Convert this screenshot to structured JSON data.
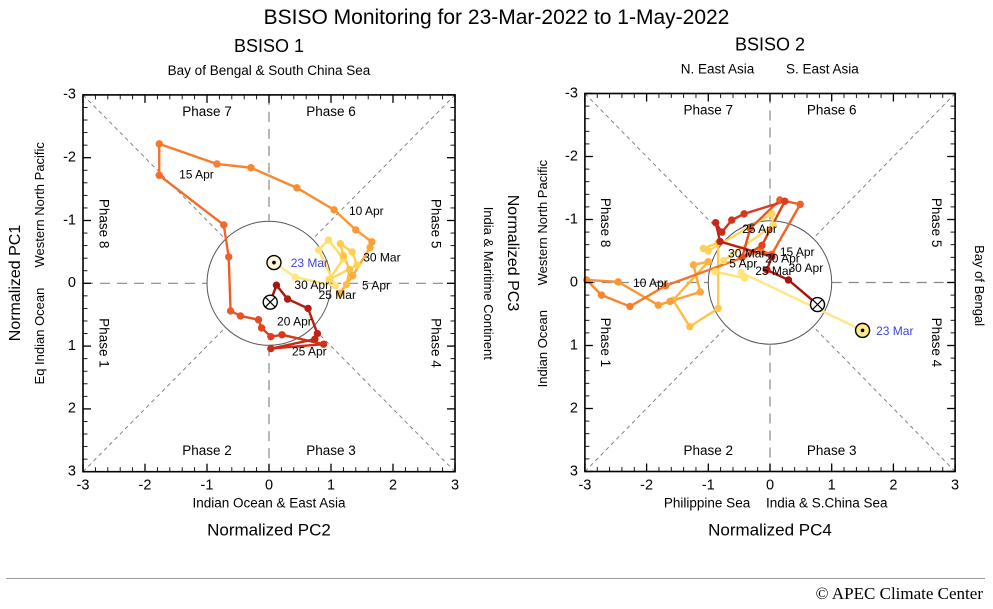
{
  "page": {
    "title": "BSISO Monitoring for 23-Mar-2022 to 1-May-2022",
    "copyright": "© APEC Climate Center"
  },
  "style": {
    "trajectory_gradient": [
      "#FFE887",
      "#FFDB63",
      "#FFC84A",
      "#FCA93A",
      "#F78A30",
      "#F1662A",
      "#E1421E",
      "#C22717",
      "#9E120C"
    ],
    "start_label_color": "#4040E0",
    "date_label_color": "#000000",
    "axis_color": "#000000",
    "diagonal_color": "#777777",
    "cross_color": "#888888",
    "circle_color": "#555555"
  },
  "chart_data": [
    {
      "type": "scatter",
      "title": "BSISO 1",
      "xlabel": "Normalized PC2",
      "ylabel": "Normalized PC1",
      "xlim": [
        -3,
        3
      ],
      "ylim": [
        -3,
        3
      ],
      "y_axis_inverted": true,
      "ticks": {
        "major_every": 1,
        "minor_every": 0.2,
        "labels": [
          "-3",
          "-2",
          "-1",
          "0",
          "1",
          "2",
          "3"
        ]
      },
      "top_region_labels": [
        {
          "text": "Bay of Bengal & South China Sea",
          "x": 0
        }
      ],
      "bottom_region_labels": [
        {
          "text": "Indian Ocean & East Asia",
          "x": 0
        }
      ],
      "left_region_labels": [
        {
          "text": "Western North Pacific",
          "y": -1.25
        },
        {
          "text": "Eq Indian Ocean",
          "y": 0.84
        }
      ],
      "right_region_labels": [
        {
          "text": "India & Maritime Continent",
          "y": 0
        }
      ],
      "phase_labels": [
        {
          "text": "Phase 7",
          "x": -1.0,
          "y": -2.72,
          "rot": 0
        },
        {
          "text": "Phase 6",
          "x": 1.0,
          "y": -2.72,
          "rot": 0
        },
        {
          "text": "Phase 8",
          "x": -2.68,
          "y": -0.95,
          "rot": 90
        },
        {
          "text": "Phase 5",
          "x": 2.68,
          "y": -0.95,
          "rot": 90
        },
        {
          "text": "Phase 1",
          "x": -2.68,
          "y": 0.95,
          "rot": 90
        },
        {
          "text": "Phase 4",
          "x": 2.68,
          "y": 0.95,
          "rot": 90
        },
        {
          "text": "Phase 2",
          "x": -1.0,
          "y": 2.68,
          "rot": 0
        },
        {
          "text": "Phase 3",
          "x": 1.0,
          "y": 2.68,
          "rot": 0
        }
      ],
      "series": {
        "name": "daily PC2/PC1 trajectory",
        "start_date": "23 Mar 2022",
        "end_date": "1 May 2022",
        "points": [
          [
            0.08,
            -0.33
          ],
          [
            0.42,
            -0.1
          ],
          [
            1.07,
            0.04
          ],
          [
            0.8,
            -0.53
          ],
          [
            0.96,
            -0.69
          ],
          [
            1.2,
            -0.39
          ],
          [
            0.97,
            -0.06
          ],
          [
            1.42,
            -0.29
          ],
          [
            1.34,
            -0.5
          ],
          [
            1.15,
            -0.63
          ],
          [
            1.2,
            -0.44
          ],
          [
            1.3,
            -0.22
          ],
          [
            1.25,
            0.02
          ],
          [
            1.14,
            0.16
          ],
          [
            1.35,
            -0.12
          ],
          [
            1.63,
            -0.57
          ],
          [
            1.66,
            -0.66
          ],
          [
            1.4,
            -0.85
          ],
          [
            1.05,
            -1.17
          ],
          [
            0.45,
            -1.52
          ],
          [
            -0.29,
            -1.84
          ],
          [
            -0.84,
            -1.9
          ],
          [
            -1.77,
            -2.22
          ],
          [
            -1.77,
            -1.72
          ],
          [
            -0.73,
            -0.93
          ],
          [
            -0.65,
            -0.42
          ],
          [
            -0.62,
            0.44
          ],
          [
            -0.46,
            0.52
          ],
          [
            -0.17,
            0.58
          ],
          [
            -0.12,
            0.71
          ],
          [
            0.03,
            0.85
          ],
          [
            0.21,
            0.82
          ],
          [
            0.88,
            0.97
          ],
          [
            0.03,
            1.04
          ],
          [
            0.74,
            0.89
          ],
          [
            0.78,
            0.8
          ],
          [
            0.63,
            0.4
          ],
          [
            0.3,
            0.25
          ],
          [
            0.12,
            0.03
          ],
          [
            0.02,
            0.3
          ]
        ]
      },
      "start_marker": {
        "symbol": "circle-dot",
        "fill": "#FFF6D8",
        "label": "23 Mar"
      },
      "end_marker": {
        "symbol": "circle-x",
        "fill": "#FFFFFF"
      },
      "date_labels": [
        {
          "text": "23 Mar",
          "x": 0.35,
          "y": -0.31,
          "blue": true
        },
        {
          "text": "25 Mar",
          "x": 0.8,
          "y": 0.2,
          "blue": false
        },
        {
          "text": "30 Mar",
          "x": 1.52,
          "y": -0.4,
          "blue": false
        },
        {
          "text": "5  Apr",
          "x": 1.5,
          "y": 0.05,
          "blue": false
        },
        {
          "text": "10 Apr",
          "x": 1.29,
          "y": -1.14,
          "blue": false
        },
        {
          "text": "15 Apr",
          "x": -1.45,
          "y": -1.72,
          "blue": false
        },
        {
          "text": "20 Apr",
          "x": 0.13,
          "y": 0.62,
          "blue": false
        },
        {
          "text": "25 Apr",
          "x": 0.37,
          "y": 1.1,
          "blue": false
        },
        {
          "text": "30 Apr",
          "x": 0.41,
          "y": 0.04,
          "blue": false
        }
      ]
    },
    {
      "type": "scatter",
      "title": "BSISO 2",
      "xlabel": "Normalized PC4",
      "ylabel": "Normalized PC3",
      "xlim": [
        -3,
        3
      ],
      "ylim": [
        -3,
        3
      ],
      "y_axis_inverted": true,
      "ticks": {
        "major_every": 1,
        "minor_every": 0.2,
        "labels": [
          "-3",
          "-2",
          "-1",
          "0",
          "1",
          "2",
          "3"
        ]
      },
      "top_region_labels": [
        {
          "text": "N. East Asia",
          "x": -0.85
        },
        {
          "text": "S. East Asia",
          "x": 0.85
        }
      ],
      "bottom_region_labels": [
        {
          "text": "Philippine Sea",
          "x": -1.02
        },
        {
          "text": "India & S.China Sea",
          "x": 0.92
        }
      ],
      "left_region_labels": [
        {
          "text": "Western North Pacific",
          "y": -0.95
        },
        {
          "text": "Indian Ocean",
          "y": 1.05
        }
      ],
      "right_region_labels": [
        {
          "text": "Bay of Bengal",
          "y": 0.05
        }
      ],
      "phase_labels": [
        {
          "text": "Phase 7",
          "x": -1.0,
          "y": -2.72,
          "rot": 0
        },
        {
          "text": "Phase 6",
          "x": 1.0,
          "y": -2.72,
          "rot": 0
        },
        {
          "text": "Phase 8",
          "x": -2.68,
          "y": -0.95,
          "rot": 90
        },
        {
          "text": "Phase 5",
          "x": 2.68,
          "y": -0.95,
          "rot": 90
        },
        {
          "text": "Phase 1",
          "x": -2.68,
          "y": 0.95,
          "rot": 90
        },
        {
          "text": "Phase 4",
          "x": 2.68,
          "y": 0.95,
          "rot": 90
        },
        {
          "text": "Phase 2",
          "x": -1.0,
          "y": 2.68,
          "rot": 0
        },
        {
          "text": "Phase 3",
          "x": 1.0,
          "y": 2.68,
          "rot": 0
        }
      ],
      "series": {
        "name": "daily PC4/PC3 trajectory",
        "start_date": "23 Mar 2022",
        "end_date": "1 May 2022",
        "points": [
          [
            1.5,
            0.76
          ],
          [
            -0.47,
            -0.16
          ],
          [
            -0.41,
            -0.07
          ],
          [
            -0.89,
            -0.17
          ],
          [
            -0.75,
            -0.35
          ],
          [
            0.05,
            -0.91
          ],
          [
            0.03,
            -1.09
          ],
          [
            -1.0,
            -0.5
          ],
          [
            -1.08,
            -0.54
          ],
          [
            -0.84,
            -0.63
          ],
          [
            -0.84,
            0.41
          ],
          [
            -1.3,
            0.7
          ],
          [
            -1.57,
            0.28
          ],
          [
            -1.0,
            -0.33
          ],
          [
            -1.24,
            -0.28
          ],
          [
            -1.13,
            0.15
          ],
          [
            -1.62,
            0.3
          ],
          [
            -1.81,
            0.36
          ],
          [
            -2.46,
            -0.01
          ],
          [
            -2.97,
            -0.04
          ],
          [
            -2.73,
            0.2
          ],
          [
            -2.27,
            0.38
          ],
          [
            -1.69,
            0.05
          ],
          [
            -0.15,
            -0.5
          ],
          [
            0.03,
            -0.45
          ],
          [
            0.49,
            -1.24
          ],
          [
            0.16,
            -1.31
          ],
          [
            -0.32,
            -0.86
          ],
          [
            -0.45,
            -0.4
          ],
          [
            -0.13,
            -0.59
          ],
          [
            0.24,
            -1.29
          ],
          [
            -0.42,
            -1.09
          ],
          [
            -0.62,
            -0.99
          ],
          [
            -0.78,
            -0.8
          ],
          [
            -0.88,
            -0.95
          ],
          [
            -0.81,
            -0.65
          ],
          [
            0.03,
            -0.41
          ],
          [
            -0.05,
            -0.2
          ],
          [
            0.3,
            -0.04
          ],
          [
            0.77,
            0.35
          ]
        ]
      },
      "start_marker": {
        "symbol": "circle-dot",
        "fill": "#FFE98F",
        "label": "23 Mar"
      },
      "end_marker": {
        "symbol": "circle-x",
        "fill": "#FFFFFF"
      },
      "date_labels": [
        {
          "text": "23 Mar",
          "x": 1.72,
          "y": 0.78,
          "blue": true
        },
        {
          "text": "25 Mar",
          "x": -0.24,
          "y": -0.17,
          "blue": false
        },
        {
          "text": "30 Mar",
          "x": -0.68,
          "y": -0.45,
          "blue": false
        },
        {
          "text": "5  Apr",
          "x": -0.66,
          "y": -0.29,
          "blue": false
        },
        {
          "text": "10 Apr",
          "x": -2.22,
          "y": 0.02,
          "blue": false
        },
        {
          "text": "15 Apr",
          "x": 0.16,
          "y": -0.47,
          "blue": false
        },
        {
          "text": "20 Apr",
          "x": -0.08,
          "y": -0.37,
          "blue": false
        },
        {
          "text": "25 Apr",
          "x": -0.45,
          "y": -0.84,
          "blue": false
        },
        {
          "text": "30 Apr",
          "x": 0.3,
          "y": -0.22,
          "blue": false
        }
      ]
    }
  ]
}
